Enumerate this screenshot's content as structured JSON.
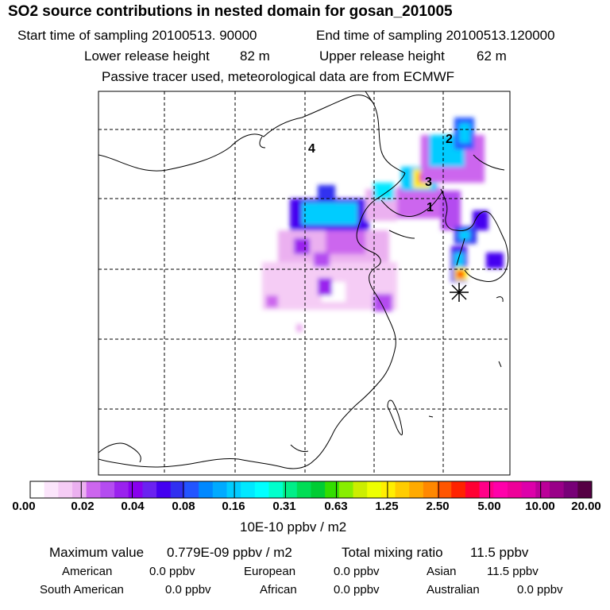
{
  "title": "SO2 source contributions in nested domain for gosan_201005",
  "sampling": {
    "start_label": "Start time of sampling 20100513. 90000",
    "end_label": "End time of sampling 20100513.120000"
  },
  "release": {
    "lower_label": "Lower release height",
    "lower_value": "82 m",
    "upper_label": "Upper release height",
    "upper_value": "62 m"
  },
  "tracer_note": "Passive tracer used, meteorological data are from ECMWF",
  "map": {
    "region_labels": [
      "1",
      "2",
      "3",
      "4"
    ],
    "receptor_marker": "asterisk-icon"
  },
  "colorbar": {
    "tick_labels": [
      "0.00",
      "0.02",
      "0.04",
      "0.08",
      "0.16",
      "0.31",
      "0.63",
      "1.25",
      "2.50",
      "5.00",
      "10.00",
      "20.00"
    ],
    "units": "10E-10 ppbv / m2",
    "colors": [
      "#ffffff",
      "#fbe5fb",
      "#f5ccf5",
      "#ebb0f0",
      "#cc66ee",
      "#b44cf0",
      "#9a22ee",
      "#8800ee",
      "#6a22f0",
      "#4400f0",
      "#3030f0",
      "#2255ff",
      "#0088ff",
      "#00aaff",
      "#00ccff",
      "#00e8ff",
      "#00ffff",
      "#00ffcc",
      "#00ee88",
      "#00dd55",
      "#00cc33",
      "#33dd00",
      "#88ee00",
      "#ccee00",
      "#eeff00",
      "#ffee00",
      "#ffcc00",
      "#ffaa00",
      "#ff8800",
      "#ff5500",
      "#ff2200",
      "#ff0033",
      "#ff0088",
      "#ff00aa",
      "#ee0099",
      "#dd00aa",
      "#bb0099",
      "#990088",
      "#770077",
      "#550044"
    ]
  },
  "stats": {
    "max_label": "Maximum value",
    "max_value": "0.779E-09 ppbv / m2",
    "total_label": "Total mixing ratio",
    "total_value": "11.5 ppbv",
    "regions": [
      {
        "name": "American",
        "value": "0.0 ppbv"
      },
      {
        "name": "European",
        "value": "0.0 ppbv"
      },
      {
        "name": "Asian",
        "value": "11.5 ppbv"
      },
      {
        "name": "South American",
        "value": "0.0 ppbv"
      },
      {
        "name": "African",
        "value": "0.0 ppbv"
      },
      {
        "name": "Australian",
        "value": "0.0 ppbv"
      }
    ]
  }
}
